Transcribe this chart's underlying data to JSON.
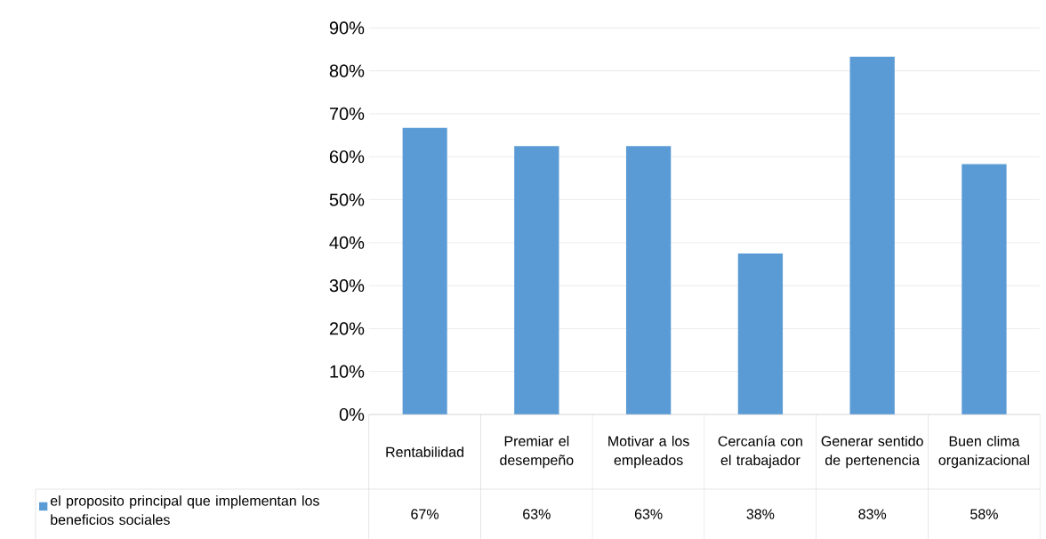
{
  "chart_data": {
    "type": "bar",
    "categories": [
      "Rentabilidad",
      "Premiar el desempeño",
      "Motivar a los empleados",
      "Cercanía con el trabajador",
      "Generar sentido de pertenencia",
      "Buen clima organizacional"
    ],
    "series": [
      {
        "name": "el proposito principal que implementan los beneficios sociales",
        "color": "#5b9bd5",
        "values": [
          66.7,
          62.5,
          62.5,
          37.5,
          83.3,
          58.3
        ],
        "value_labels": [
          "67%",
          "63%",
          "63%",
          "38%",
          "83%",
          "58%"
        ]
      }
    ],
    "ylim": [
      0,
      90
    ],
    "yticks": [
      {
        "value": 0,
        "label": "0%"
      },
      {
        "value": 10,
        "label": "10%"
      },
      {
        "value": 20,
        "label": "20%"
      },
      {
        "value": 30,
        "label": "30%"
      },
      {
        "value": 40,
        "label": "40%"
      },
      {
        "value": 50,
        "label": "50%"
      },
      {
        "value": 60,
        "label": "60%"
      },
      {
        "value": 70,
        "label": "70%"
      },
      {
        "value": 80,
        "label": "80%"
      },
      {
        "value": 90,
        "label": "90%"
      }
    ],
    "grid": "y",
    "legend": "bottom"
  }
}
